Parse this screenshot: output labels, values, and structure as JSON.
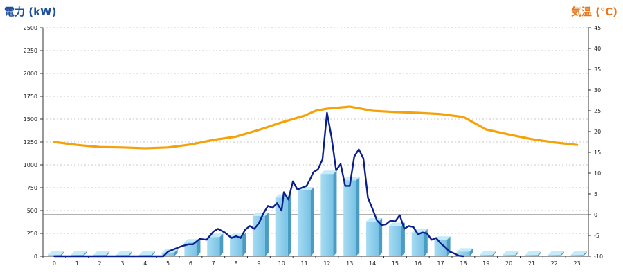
{
  "titles": {
    "left": "電力 (kW)",
    "right": "気温 (℃)"
  },
  "colors": {
    "bar": "#87ceeb",
    "power_line": "#0a1e8c",
    "temp_line": "#f5a20a",
    "axis_left": "#1f4e9a",
    "axis_right": "#e8761a"
  },
  "chart_data": {
    "type": "bar",
    "categories": [
      "0",
      "1",
      "2",
      "3",
      "4",
      "5",
      "6",
      "7",
      "8",
      "9",
      "10",
      "11",
      "12",
      "13",
      "14",
      "15",
      "16",
      "17",
      "18",
      "19",
      "20",
      "21",
      "22",
      "23"
    ],
    "y_left": {
      "label": "電力 (kW)",
      "range": [
        0,
        2500
      ],
      "ticks": [
        0,
        250,
        500,
        750,
        1000,
        1250,
        1500,
        1750,
        2000,
        2250,
        2500
      ]
    },
    "y_right": {
      "label": "気温 (℃)",
      "range": [
        -10,
        45
      ],
      "ticks": [
        -10,
        -5,
        0,
        5,
        10,
        15,
        20,
        25,
        30,
        35,
        40,
        45
      ]
    },
    "grid": true,
    "series": [
      {
        "kind": "bar",
        "axis": "left",
        "values": [
          5,
          5,
          5,
          5,
          5,
          40,
          150,
          210,
          220,
          440,
          640,
          720,
          900,
          830,
          380,
          330,
          260,
          180,
          50,
          5,
          5,
          5,
          5,
          5
        ]
      },
      {
        "kind": "line",
        "axis": "left",
        "x": [
          0,
          1,
          2,
          3,
          4,
          4.8,
          5.0,
          5.3,
          5.6,
          5.9,
          6.1,
          6.4,
          6.7,
          7.0,
          7.2,
          7.5,
          7.8,
          8.0,
          8.2,
          8.4,
          8.6,
          8.8,
          9.0,
          9.2,
          9.4,
          9.6,
          9.8,
          10.0,
          10.1,
          10.3,
          10.5,
          10.7,
          10.9,
          11.1,
          11.25,
          11.4,
          11.6,
          11.8,
          12.0,
          12.2,
          12.4,
          12.6,
          12.8,
          13.0,
          13.2,
          13.4,
          13.6,
          13.8,
          14.0,
          14.2,
          14.4,
          14.6,
          14.8,
          15.0,
          15.2,
          15.4,
          15.6,
          15.8,
          16.0,
          16.2,
          16.4,
          16.6,
          16.8,
          17.0,
          17.2,
          17.4,
          17.6,
          17.8,
          18.0
        ],
        "values": [
          0,
          0,
          0,
          0,
          0,
          0,
          50,
          80,
          110,
          130,
          130,
          190,
          180,
          270,
          300,
          260,
          200,
          220,
          200,
          290,
          330,
          300,
          360,
          470,
          550,
          530,
          580,
          500,
          700,
          620,
          820,
          730,
          750,
          770,
          840,
          920,
          950,
          1060,
          1570,
          1300,
          940,
          1010,
          770,
          770,
          1090,
          1170,
          1070,
          640,
          520,
          390,
          340,
          350,
          390,
          380,
          450,
          300,
          330,
          320,
          240,
          260,
          250,
          180,
          200,
          140,
          100,
          50,
          30,
          5,
          0
        ]
      },
      {
        "kind": "line",
        "axis": "right",
        "x": [
          0,
          1,
          2,
          3,
          4,
          5,
          6,
          7,
          8,
          9,
          10,
          11,
          11.5,
          12,
          13,
          14,
          15,
          16,
          17,
          18,
          19,
          20,
          21,
          22,
          23
        ],
        "values": [
          17.5,
          16.8,
          16.3,
          16.2,
          16.0,
          16.2,
          16.9,
          18.0,
          18.8,
          20.4,
          22.2,
          23.8,
          25.0,
          25.5,
          26.0,
          25.0,
          24.7,
          24.5,
          24.2,
          23.5,
          20.5,
          19.3,
          18.2,
          17.4,
          16.8
        ]
      }
    ]
  }
}
